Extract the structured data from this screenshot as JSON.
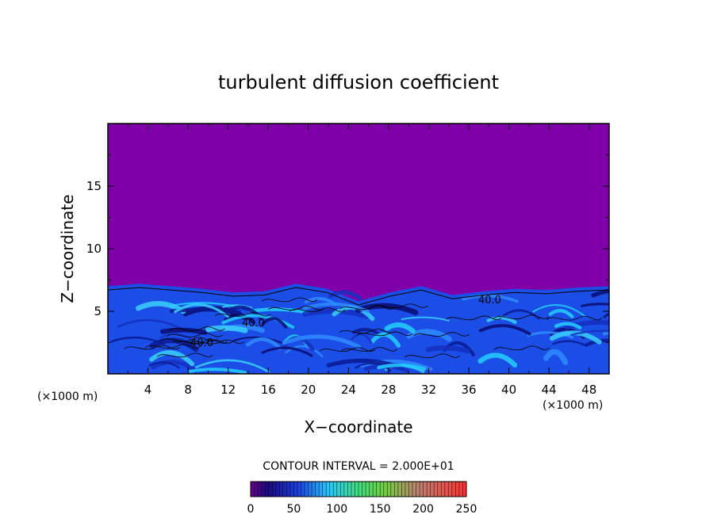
{
  "chart_data": {
    "type": "heatmap",
    "title": "turbulent diffusion coefficient",
    "xlabel": "X−coordinate",
    "ylabel": "Z−coordinate",
    "x_unit": "(×1000 m)",
    "z_unit": "(×1000 m)",
    "xlim": [
      0,
      50
    ],
    "ylim": [
      0,
      20
    ],
    "x_ticks": [
      "4",
      "8",
      "12",
      "16",
      "20",
      "24",
      "28",
      "32",
      "36",
      "40",
      "44",
      "48"
    ],
    "y_ticks": [
      "5",
      "10",
      "15"
    ],
    "contour_interval_text": "CONTOUR INTERVAL = 2.000E+01",
    "contour_labels": [
      "40.0",
      "40.0",
      "40.0"
    ],
    "colorbar": {
      "min": 0,
      "max": 250,
      "ticks": [
        "0",
        "50",
        "100",
        "150",
        "200",
        "250"
      ],
      "colors": [
        "#7a00aa",
        "#1010a0",
        "#1a55ff",
        "#20d8ff",
        "#40ff60",
        "#ff2020"
      ]
    },
    "background_color": "#7f00a8",
    "turbulent_layer_top_z": [
      7.0,
      7.2,
      7.0,
      6.8,
      6.5,
      6.6,
      7.2,
      6.8,
      5.8,
      6.5,
      7.0,
      6.3,
      6.6,
      6.8,
      6.7,
      6.9,
      7.0
    ]
  }
}
